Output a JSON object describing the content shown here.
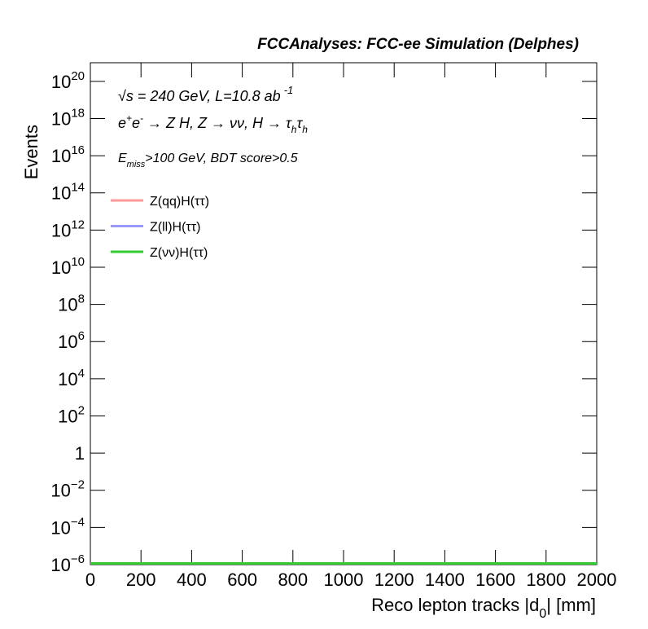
{
  "chart_data": {
    "type": "histogram",
    "title": "FCCAnalyses: FCC-ee Simulation (Delphes)",
    "annotations": [
      [
        "√s = 240 GeV, L=10.8 ab",
        "-1"
      ],
      [
        "e",
        "+",
        "e",
        "-",
        " → Z H, Z  → νν, H → τ",
        "h",
        "τ",
        "h"
      ],
      [
        "E",
        "miss",
        ">100 GeV, BDT score>0.5"
      ]
    ],
    "xlabel": [
      "Reco lepton tracks |d",
      "0",
      "| [mm]"
    ],
    "ylabel": "Events",
    "bins": [
      0,
      2000
    ],
    "series": [
      {
        "name": "Z(qq)H(ττ)",
        "color": "#ff9999",
        "values": [
          1e-06
        ]
      },
      {
        "name": "Z(ll)H(ττ)",
        "color": "#9999ff",
        "values": [
          1e-06
        ]
      },
      {
        "name": "Z(νν)H(ττ)",
        "color": "#33cc33",
        "values": [
          1e-06
        ]
      }
    ],
    "xlim": [
      0,
      2000
    ],
    "xticks": [
      0,
      200,
      400,
      600,
      800,
      1000,
      1200,
      1400,
      1600,
      1800,
      2000
    ],
    "ylim": [
      1e-06,
      1e+21
    ],
    "yscale": "log",
    "yticks": [
      {
        "value": 1e-06,
        "label": "10",
        "exponent": "−6"
      },
      {
        "value": 0.0001,
        "label": "10",
        "exponent": "−4"
      },
      {
        "value": 0.01,
        "label": "10",
        "exponent": "−2"
      },
      1,
      {
        "value": 100,
        "label": "10",
        "exponent": "2"
      },
      {
        "value": 10000.0,
        "label": "10",
        "exponent": "4"
      },
      {
        "value": 1000000.0,
        "label": "10",
        "exponent": "6"
      },
      {
        "value": 100000000.0,
        "label": "10",
        "exponent": "8"
      },
      {
        "value": 10000000000.0,
        "label": "10",
        "exponent": "10"
      },
      {
        "value": 1000000000000.0,
        "label": "10",
        "exponent": "12"
      },
      {
        "value": 100000000000000.0,
        "label": "10",
        "exponent": "14"
      },
      {
        "value": 1e+16,
        "label": "10",
        "exponent": "16"
      },
      {
        "value": 1e+18,
        "label": "10",
        "exponent": "18"
      },
      {
        "value": 1e+20,
        "label": "10",
        "exponent": "20"
      }
    ],
    "legend": "top left",
    "grid": false
  }
}
